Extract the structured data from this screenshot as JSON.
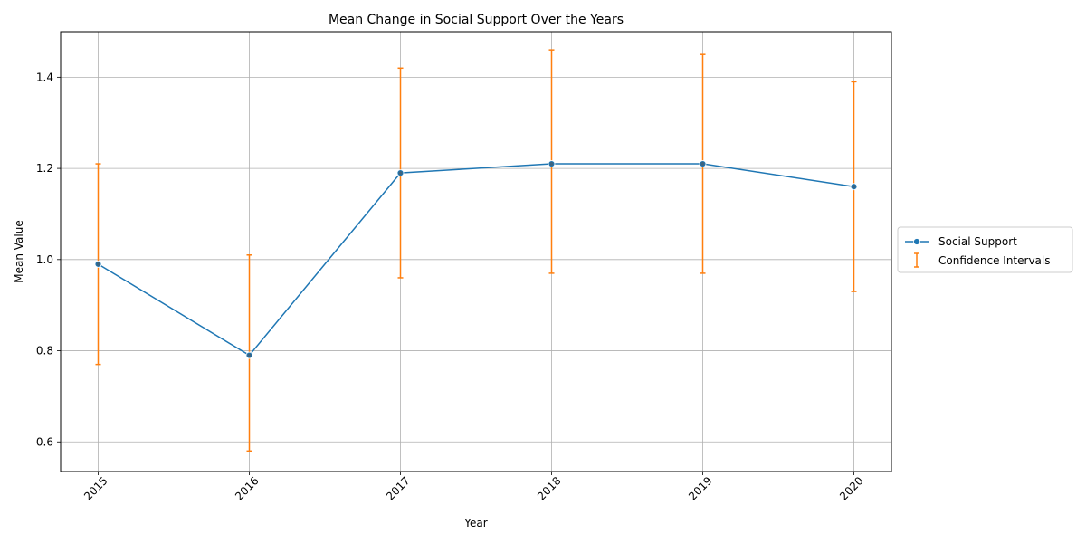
{
  "chart_data": {
    "type": "line",
    "title": "Mean Change in Social Support Over the Years",
    "xlabel": "Year",
    "ylabel": "Mean Value",
    "categories": [
      "2015",
      "2016",
      "2017",
      "2018",
      "2019",
      "2020"
    ],
    "series": [
      {
        "name": "Social Support",
        "values": [
          0.99,
          0.79,
          1.19,
          1.21,
          1.21,
          1.16
        ],
        "color": "#1f77b4",
        "marker": "circle"
      }
    ],
    "error_bars": {
      "name": "Confidence Intervals",
      "color": "#ff7f0e",
      "lower": [
        0.77,
        0.58,
        0.96,
        0.97,
        0.97,
        0.93
      ],
      "upper": [
        1.21,
        1.01,
        1.42,
        1.46,
        1.45,
        1.39
      ]
    },
    "ylim": [
      0.535,
      1.5
    ],
    "yticks": [
      "0.6",
      "0.8",
      "1.0",
      "1.2",
      "1.4"
    ],
    "ytick_values": [
      0.6,
      0.8,
      1.0,
      1.2,
      1.4
    ],
    "xtick_rotation_deg": 45,
    "grid": true,
    "legend_placement": "center-right outside"
  }
}
